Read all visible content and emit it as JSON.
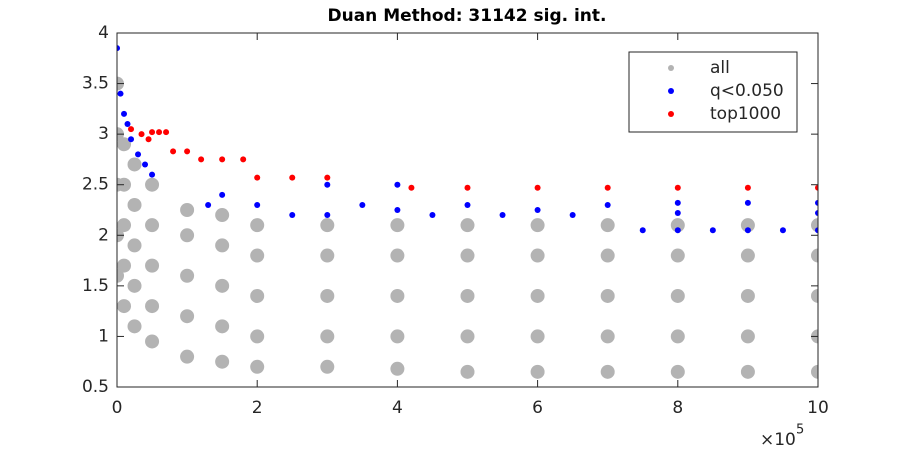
{
  "chart_data": {
    "type": "scatter",
    "title": "Duan Method: 31142 sig. int.",
    "xlim": [
      0,
      1000000
    ],
    "xticks": [
      {
        "value": 0,
        "label": "0"
      },
      {
        "value": 200000,
        "label": "2"
      },
      {
        "value": 400000,
        "label": "4"
      },
      {
        "value": 600000,
        "label": "6"
      },
      {
        "value": 800000,
        "label": "8"
      },
      {
        "value": 1000000,
        "label": "10"
      }
    ],
    "x_exponent_base": "×10",
    "x_exponent": "5",
    "ylim": [
      0.5,
      4
    ],
    "yticks": [
      0.5,
      1,
      1.5,
      2,
      2.5,
      3,
      3.5,
      4
    ],
    "grid": false,
    "legend": "northeast",
    "series": [
      {
        "name": "all",
        "color": "#b3b3b3",
        "x": [
          0,
          0,
          0,
          0,
          0,
          10000,
          10000,
          10000,
          10000,
          10000,
          25000,
          25000,
          25000,
          25000,
          25000,
          50000,
          50000,
          50000,
          50000,
          50000,
          100000,
          100000,
          100000,
          100000,
          100000,
          150000,
          150000,
          150000,
          150000,
          150000,
          200000,
          200000,
          200000,
          200000,
          200000,
          300000,
          300000,
          300000,
          300000,
          300000,
          400000,
          400000,
          400000,
          400000,
          400000,
          500000,
          500000,
          500000,
          500000,
          500000,
          600000,
          600000,
          600000,
          600000,
          600000,
          700000,
          700000,
          700000,
          700000,
          700000,
          800000,
          800000,
          800000,
          800000,
          800000,
          900000,
          900000,
          900000,
          900000,
          900000,
          1000000,
          1000000,
          1000000,
          1000000,
          1000000
        ],
        "values": [
          1.6,
          2.0,
          2.5,
          3.0,
          3.5,
          1.3,
          1.7,
          2.1,
          2.5,
          2.9,
          1.1,
          1.5,
          1.9,
          2.3,
          2.7,
          0.95,
          1.3,
          1.7,
          2.1,
          2.5,
          0.8,
          1.2,
          1.6,
          2.0,
          2.25,
          0.75,
          1.1,
          1.5,
          1.9,
          2.2,
          0.7,
          1.0,
          1.4,
          1.8,
          2.1,
          0.7,
          1.0,
          1.4,
          1.8,
          2.1,
          0.68,
          1.0,
          1.4,
          1.8,
          2.1,
          0.65,
          1.0,
          1.4,
          1.8,
          2.1,
          0.65,
          1.0,
          1.4,
          1.8,
          2.1,
          0.65,
          1.0,
          1.4,
          1.8,
          2.1,
          0.65,
          1.0,
          1.4,
          1.8,
          2.1,
          0.65,
          1.0,
          1.4,
          1.8,
          2.1,
          0.65,
          1.0,
          1.4,
          1.8,
          2.1
        ]
      },
      {
        "name": "q<0.050",
        "color": "#0000ff",
        "x": [
          0,
          5000,
          10000,
          15000,
          20000,
          30000,
          40000,
          50000,
          130000,
          150000,
          200000,
          250000,
          300000,
          350000,
          400000,
          450000,
          500000,
          550000,
          600000,
          650000,
          700000,
          750000,
          800000,
          850000,
          900000,
          950000,
          1000000,
          800000,
          900000,
          1000000,
          800000,
          1000000,
          300000,
          400000
        ],
        "values": [
          3.85,
          3.4,
          3.2,
          3.1,
          2.95,
          2.8,
          2.7,
          2.6,
          2.3,
          2.4,
          2.3,
          2.2,
          2.2,
          2.3,
          2.25,
          2.2,
          2.3,
          2.2,
          2.25,
          2.2,
          2.3,
          2.05,
          2.05,
          2.05,
          2.05,
          2.05,
          2.05,
          2.32,
          2.32,
          2.32,
          2.22,
          2.22,
          2.5,
          2.5
        ]
      },
      {
        "name": "top1000",
        "color": "#ff0000",
        "x": [
          20000,
          35000,
          45000,
          50000,
          60000,
          70000,
          80000,
          100000,
          120000,
          150000,
          180000,
          200000,
          250000,
          300000,
          420000,
          500000,
          600000,
          700000,
          800000,
          900000,
          1000000
        ],
        "values": [
          3.05,
          3.0,
          2.95,
          3.02,
          3.02,
          3.02,
          2.83,
          2.83,
          2.75,
          2.75,
          2.75,
          2.57,
          2.57,
          2.57,
          2.47,
          2.47,
          2.47,
          2.47,
          2.47,
          2.47,
          2.47
        ]
      }
    ]
  }
}
